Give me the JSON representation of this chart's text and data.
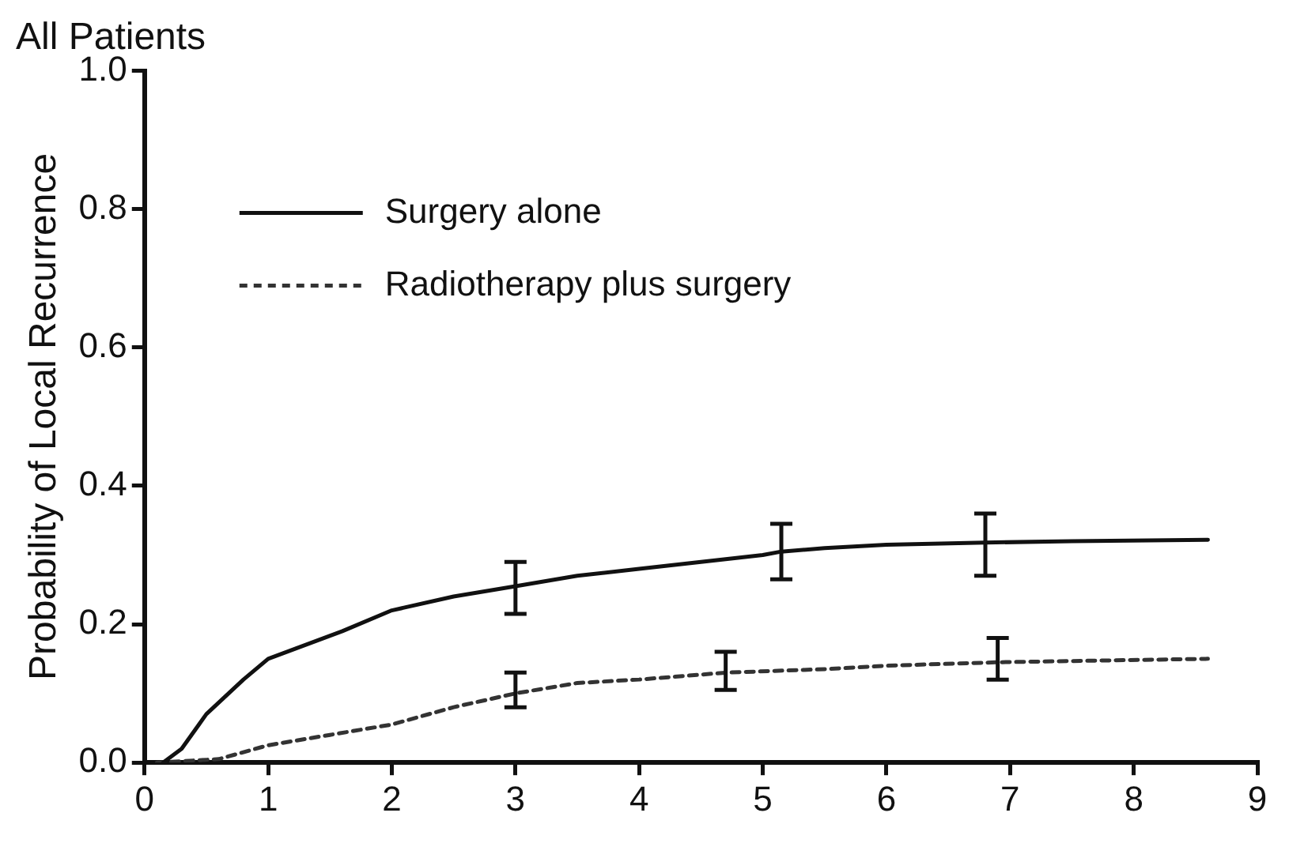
{
  "chart_data": {
    "type": "line",
    "title": "All Patients",
    "ylabel": "Probability of Local Recurrence",
    "xlim": [
      0,
      9
    ],
    "xticks": [
      0,
      1,
      2,
      3,
      4,
      5,
      6,
      7,
      8,
      9
    ],
    "ylim": [
      0,
      1
    ],
    "yticks": [
      {
        "value": 0,
        "label": "0.0"
      },
      {
        "value": 0.2,
        "label": "0.2"
      },
      {
        "value": 0.4,
        "label": "0.4"
      },
      {
        "value": 0.6,
        "label": "0.6"
      },
      {
        "value": 0.8,
        "label": "0.8"
      },
      {
        "value": 1,
        "label": "1.0"
      }
    ],
    "grid": false,
    "legend": "top left",
    "marker": "none",
    "series": [
      {
        "name": "Surgery alone",
        "color": "#111111",
        "line_style": "solid",
        "x": [
          0.15,
          0.3,
          0.5,
          0.8,
          1.0,
          1.3,
          1.6,
          2.0,
          2.5,
          3.0,
          3.5,
          4.0,
          4.5,
          5.0,
          5.15,
          5.5,
          6.0,
          6.8,
          7.5,
          8.6
        ],
        "values": [
          0,
          0.02,
          0.07,
          0.12,
          0.15,
          0.17,
          0.19,
          0.22,
          0.24,
          0.255,
          0.27,
          0.28,
          0.29,
          0.3,
          0.305,
          0.31,
          0.315,
          0.318,
          0.32,
          0.322
        ],
        "errors": [
          null,
          null,
          null,
          null,
          null,
          null,
          null,
          null,
          null,
          [
            0.215,
            0.29
          ],
          null,
          null,
          null,
          null,
          [
            0.265,
            0.345
          ],
          null,
          null,
          [
            0.27,
            0.36
          ],
          null,
          null
        ]
      },
      {
        "name": "Radiotherapy plus surgery",
        "color": "#333333",
        "line_style": "dashed",
        "x": [
          0.1,
          0.6,
          1.0,
          1.5,
          2.0,
          2.5,
          3.0,
          3.5,
          4.0,
          4.7,
          5.5,
          6.0,
          6.9,
          8.6
        ],
        "values": [
          0,
          0.005,
          0.025,
          0.04,
          0.055,
          0.08,
          0.1,
          0.115,
          0.12,
          0.13,
          0.135,
          0.14,
          0.145,
          0.15
        ],
        "errors": [
          null,
          null,
          null,
          null,
          null,
          null,
          [
            0.08,
            0.13
          ],
          null,
          null,
          [
            0.105,
            0.16
          ],
          null,
          null,
          [
            0.12,
            0.18
          ],
          null
        ]
      }
    ]
  }
}
